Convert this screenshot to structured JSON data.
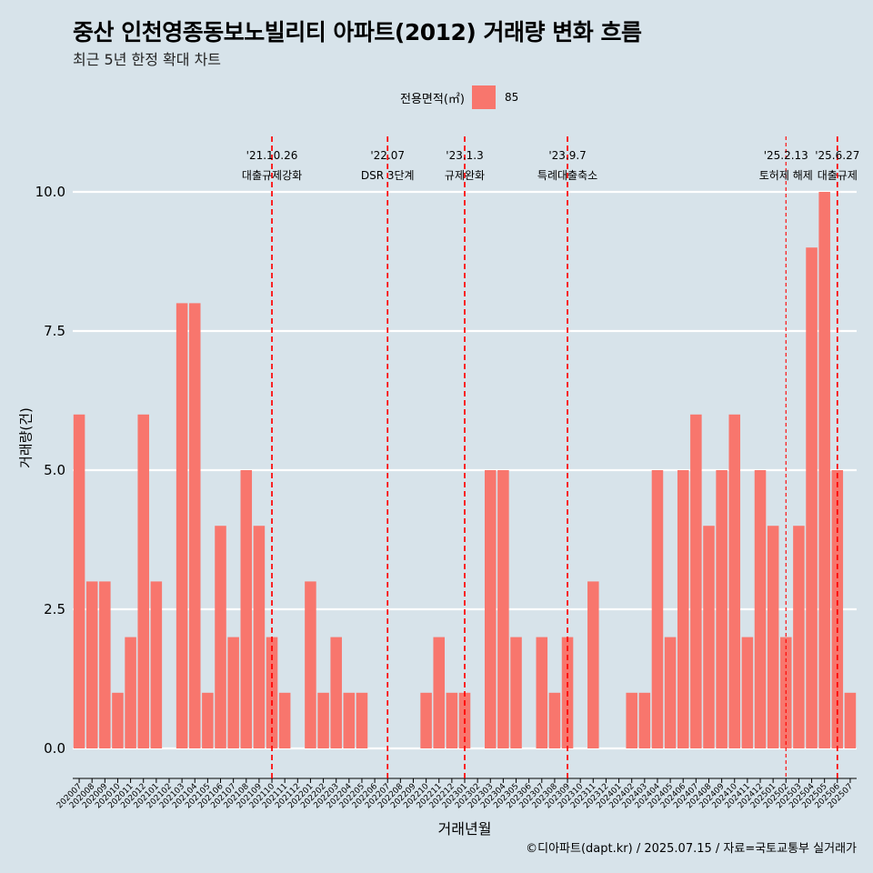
{
  "header": {
    "title": "중산 인천영종동보노빌리티 아파트(2012) 거래량 변화 흐름",
    "subtitle": "최근 5년 한정 확대 차트"
  },
  "legend": {
    "title": "전용면적(㎡)",
    "items": [
      {
        "label": "85",
        "color": "#f8766d"
      }
    ]
  },
  "footer": {
    "caption": "©디아파트(dapt.kr) / 2025.07.15 / 자료=국토교통부 실거래가"
  },
  "colors": {
    "background": "#d7e3ea",
    "bar": "#f8766d",
    "grid": "#ffffff",
    "event_line": "#ff0000"
  },
  "chart_data": {
    "type": "bar",
    "xlabel": "거래년월",
    "ylabel": "거래량(건)",
    "ylim": [
      0,
      10
    ],
    "yticks": [
      "0.0",
      "2.5",
      "5.0",
      "7.5",
      "10.0"
    ],
    "grid": true,
    "legend_position": "top",
    "categories": [
      "202007",
      "202008",
      "202009",
      "202010",
      "202011",
      "202012",
      "202101",
      "202102",
      "202103",
      "202104",
      "202105",
      "202106",
      "202107",
      "202108",
      "202109",
      "202110",
      "202111",
      "202112",
      "202201",
      "202202",
      "202203",
      "202204",
      "202205",
      "202206",
      "202207",
      "202208",
      "202209",
      "202210",
      "202211",
      "202212",
      "202301",
      "202302",
      "202303",
      "202304",
      "202305",
      "202306",
      "202307",
      "202308",
      "202309",
      "202310",
      "202311",
      "202312",
      "202401",
      "202402",
      "202403",
      "202404",
      "202405",
      "202406",
      "202407",
      "202408",
      "202409",
      "202410",
      "202411",
      "202412",
      "202501",
      "202502",
      "202503",
      "202504",
      "202505",
      "202506",
      "202507"
    ],
    "series": [
      {
        "name": "85",
        "values": [
          6,
          3,
          3,
          1,
          2,
          6,
          3,
          0,
          8,
          8,
          1,
          4,
          2,
          5,
          4,
          2,
          1,
          0,
          3,
          1,
          2,
          1,
          1,
          0,
          0,
          0,
          0,
          1,
          2,
          1,
          1,
          0,
          5,
          5,
          2,
          0,
          2,
          1,
          2,
          0,
          3,
          0,
          0,
          1,
          1,
          5,
          2,
          5,
          6,
          4,
          5,
          6,
          2,
          5,
          4,
          2,
          4,
          9,
          10,
          5,
          1
        ]
      }
    ],
    "events": [
      {
        "date": "'21.10.26",
        "label": "대출규제강화",
        "x": 15.0,
        "style": "dashed"
      },
      {
        "date": "'22.07",
        "label": "DSR 3단계",
        "x": 24.0,
        "style": "dashed"
      },
      {
        "date": "'23.1.3",
        "label": "규제완화",
        "x": 30.0,
        "style": "dashed"
      },
      {
        "date": "'23.9.7",
        "label": "특례대출축소",
        "x": 38.0,
        "style": "dashed"
      },
      {
        "date": "'25.2.13",
        "label": "토허제 해제",
        "x": 55.0,
        "style": "thin-dashed"
      },
      {
        "date": "'25.6.27",
        "label": "대출규제",
        "x": 59.0,
        "style": "dashed"
      }
    ]
  }
}
